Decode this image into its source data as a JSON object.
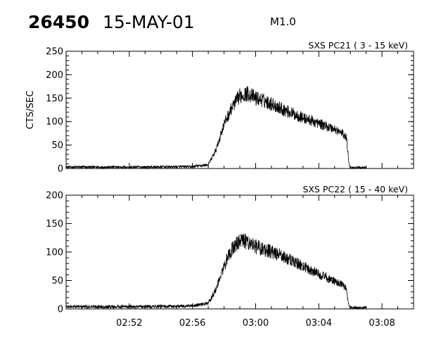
{
  "header": {
    "event_id": "26450",
    "date": "15-MAY-01",
    "flare_class": "M1.0"
  },
  "chart_data": [
    {
      "type": "line",
      "title": "SXS PC21  (  3 - 15 keV)",
      "ylabel": "CTS/SEC",
      "xlabel": "",
      "xlim": [
        "02:48",
        "03:10"
      ],
      "ylim": [
        0,
        250
      ],
      "yticks": [
        0,
        50,
        100,
        150,
        200,
        250
      ],
      "x_tick_labels": [],
      "grid": false,
      "series": [
        {
          "x": [
            "02:48",
            "02:53",
            "02:56",
            "02:57",
            "02:57:30",
            "02:58",
            "02:58:30",
            "02:59",
            "02:59:30",
            "03:00",
            "03:00:30",
            "03:01",
            "03:01:30",
            "03:02",
            "03:02:30",
            "03:03",
            "03:03:30",
            "03:04",
            "03:04:30",
            "03:05",
            "03:05:30",
            "03:05:45",
            "03:05:55",
            "03:06",
            "03:06:30",
            "03:07"
          ],
          "values": [
            3,
            3,
            4,
            8,
            40,
            95,
            130,
            155,
            160,
            150,
            145,
            138,
            130,
            122,
            115,
            108,
            102,
            96,
            90,
            84,
            75,
            65,
            10,
            2,
            2,
            2
          ]
        }
      ]
    },
    {
      "type": "line",
      "title": "SXS PC22  ( 15 - 40 keV)",
      "ylabel": "",
      "xlabel": "",
      "xlim": [
        "02:48",
        "03:10"
      ],
      "ylim": [
        0,
        200
      ],
      "yticks": [
        0,
        50,
        100,
        150,
        200
      ],
      "x_tick_labels": [
        "02:52",
        "02:56",
        "03:00",
        "03:04",
        "03:08"
      ],
      "grid": false,
      "series": [
        {
          "x": [
            "02:48",
            "02:53",
            "02:56",
            "02:57",
            "02:57:30",
            "02:58",
            "02:58:30",
            "02:59",
            "02:59:30",
            "03:00",
            "03:00:30",
            "03:01",
            "03:01:30",
            "03:02",
            "03:02:30",
            "03:03",
            "03:03:30",
            "03:04",
            "03:04:30",
            "03:05",
            "03:05:30",
            "03:05:45",
            "03:05:55",
            "03:06",
            "03:06:30",
            "03:07"
          ],
          "values": [
            4,
            4,
            5,
            10,
            35,
            75,
            105,
            120,
            118,
            110,
            105,
            100,
            95,
            88,
            82,
            75,
            68,
            62,
            55,
            48,
            42,
            35,
            5,
            2,
            2,
            2
          ]
        }
      ]
    }
  ]
}
